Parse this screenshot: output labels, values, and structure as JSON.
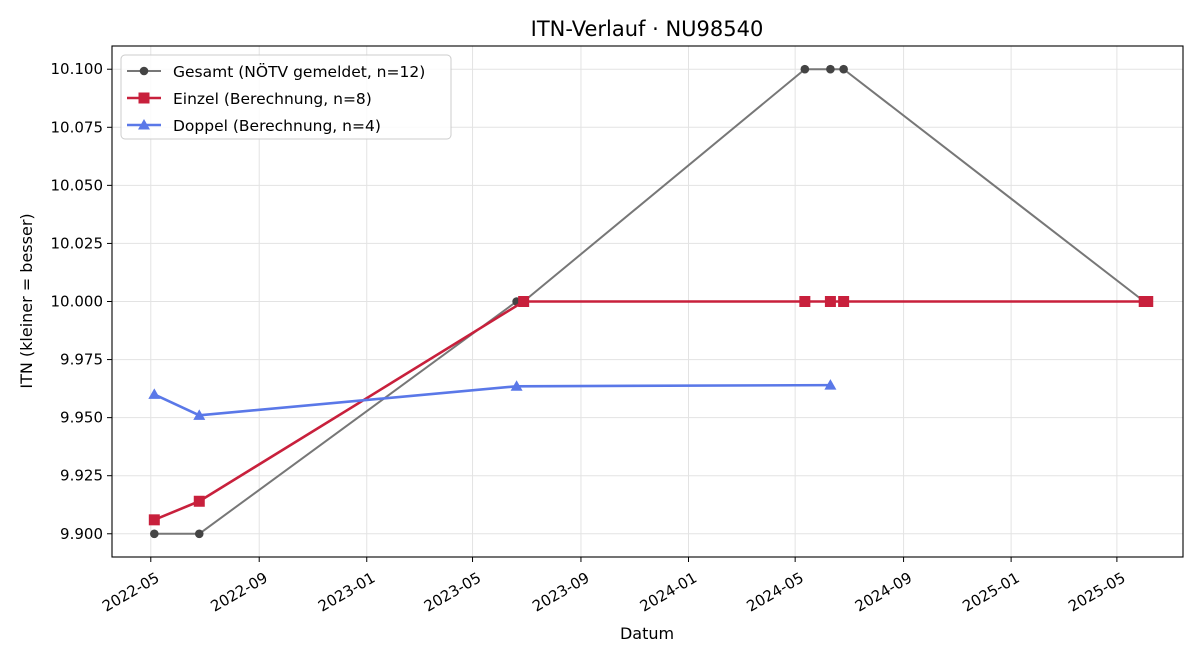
{
  "chart_data": {
    "type": "line",
    "title": "ITN-Verlauf · NU98540",
    "xlabel": "Datum",
    "ylabel": "ITN  (kleiner = besser)",
    "xlim": [
      "2022-03-18",
      "2025-07-15"
    ],
    "ylim": [
      9.89,
      10.11
    ],
    "x_ticks": [
      "2022-05",
      "2022-09",
      "2023-01",
      "2023-05",
      "2023-09",
      "2024-01",
      "2024-05",
      "2024-09",
      "2025-01",
      "2025-05"
    ],
    "y_ticks": [
      "9.900",
      "9.925",
      "9.950",
      "9.975",
      "10.000",
      "10.025",
      "10.050",
      "10.075",
      "10.100"
    ],
    "grid": true,
    "legend_position": "top-left",
    "series": [
      {
        "name": "Gesamt (NÖTV gemeldet, n=12)",
        "color": "#777777",
        "marker_color": "#444444",
        "marker": "circle",
        "x": [
          "2022-05-05",
          "2022-06-25",
          "2023-06-20",
          "2023-06-28",
          "2024-05-12",
          "2024-06-10",
          "2024-06-25",
          "2025-06-01",
          "2025-06-05"
        ],
        "y": [
          9.9,
          9.9,
          10.0,
          10.0,
          10.1,
          10.1,
          10.1,
          10.0,
          10.0
        ]
      },
      {
        "name": "Einzel (Berechnung, n=8)",
        "color": "#c8203c",
        "marker_color": "#c8203c",
        "marker": "square",
        "x": [
          "2022-05-05",
          "2022-06-25",
          "2023-06-28",
          "2024-05-12",
          "2024-06-10",
          "2024-06-25",
          "2025-06-01",
          "2025-06-05"
        ],
        "y": [
          9.906,
          9.914,
          10.0,
          10.0,
          10.0,
          10.0,
          10.0,
          10.0
        ]
      },
      {
        "name": "Doppel (Berechnung, n=4)",
        "color": "#5a78e8",
        "marker_color": "#5a78e8",
        "marker": "triangle",
        "x": [
          "2022-05-05",
          "2022-06-25",
          "2023-06-20",
          "2024-06-10"
        ],
        "y": [
          9.96,
          9.951,
          9.9635,
          9.964
        ]
      }
    ]
  }
}
